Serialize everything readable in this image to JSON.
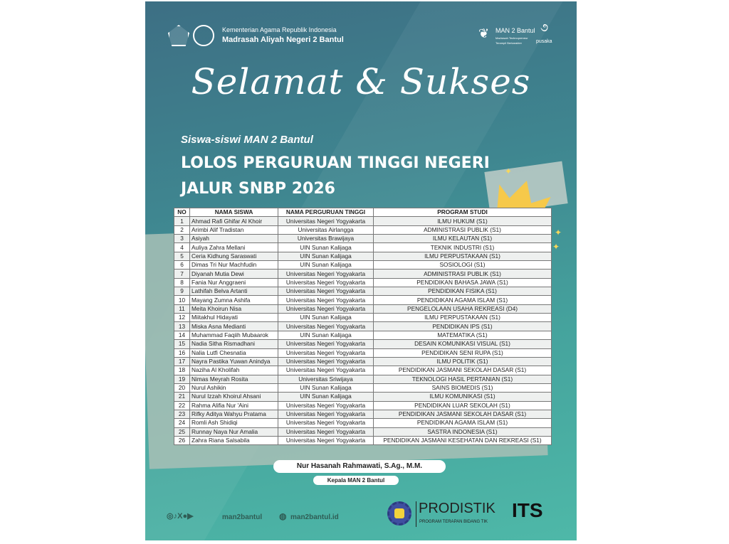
{
  "header": {
    "ministry": "Kementerian Agama Republik Indonesia",
    "school": "Madrasah Aliyah Negeri 2 Bantul",
    "brand": "MAN 2 Bantul",
    "brand_tag1": "Madrasah Technopreneur",
    "brand_tag2": "Terampil Berkarakter",
    "pusaka": "pusaka"
  },
  "title": "Selamat & Sukses",
  "subtitle": "Siswa-siswi MAN 2 Bantul",
  "headline1": "LOLOS PERGURUAN TINGGI NEGERI",
  "headline2": "JALUR SNBP 2026",
  "table": {
    "columns": [
      "NO",
      "NAMA SISWA",
      "NAMA PERGURUAN TINGGI",
      "PROGRAM STUDI"
    ],
    "rows": [
      [
        "1",
        "Ahmad Rafi Ghifar Al Khoir",
        "Universitas Negeri Yogyakarta",
        "ILMU HUKUM (S1)"
      ],
      [
        "2",
        "Arimbi Alif Tradistan",
        "Universitas Airlangga",
        "ADMINISTRASI PUBLIK (S1)"
      ],
      [
        "3",
        "Asiyah",
        "Universitas Brawijaya",
        "ILMU KELAUTAN (S1)"
      ],
      [
        "4",
        "Auliya Zahra Mellani",
        "UIN Sunan Kalijaga",
        "TEKNIK INDUSTRI (S1)"
      ],
      [
        "5",
        "Ceria Kidhung Saraswati",
        "UIN Sunan Kalijaga",
        "ILMU PERPUSTAKAAN (S1)"
      ],
      [
        "6",
        "Dimas Tri Nur Machfudin",
        "UIN Sunan Kalijaga",
        "SOSIOLOGI (S1)"
      ],
      [
        "7",
        "Diyanah Mutia Dewi",
        "Universitas Negeri Yogyakarta",
        "ADMINISTRASI PUBLIK (S1)"
      ],
      [
        "8",
        "Fania Nur Anggraeni",
        "Universitas Negeri Yogyakarta",
        "PENDIDIKAN BAHASA JAWA (S1)"
      ],
      [
        "9",
        "Lathifah Belva Artanti",
        "Universitas Negeri Yogyakarta",
        "PENDIDIKAN FISIKA (S1)"
      ],
      [
        "10",
        "Mayang Zumna Ashifa",
        "Universitas Negeri Yogyakarta",
        "PENDIDIKAN AGAMA ISLAM (S1)"
      ],
      [
        "11",
        "Meita Khoirun Nisa",
        "Universitas Negeri Yogyakarta",
        "PENGELOLAAN USAHA REKREASI (D4)"
      ],
      [
        "12",
        "Miitakhul Hidayati",
        "UIN Sunan Kalijaga",
        "ILMU PERPUSTAKAAN (S1)"
      ],
      [
        "13",
        "Miska Asna Medianti",
        "Universitas Negeri Yogyakarta",
        "PENDIDIKAN IPS (S1)"
      ],
      [
        "14",
        "Muhammad Faqiih Mubaarok",
        "UIN Sunan Kalijaga",
        "MATEMATIKA (S1)"
      ],
      [
        "15",
        "Nadia Sitha Rismadhani",
        "Universitas Negeri Yogyakarta",
        "DESAIN KOMUNIKASI VISUAL (S1)"
      ],
      [
        "16",
        "Nalia Lutfi Chesnatia",
        "Universitas Negeri Yogyakarta",
        "PENDIDIKAN SENI RUPA (S1)"
      ],
      [
        "17",
        "Nayra Pastika Yuwan Anindya",
        "Universitas Negeri Yogyakarta",
        "ILMU POLITIK (S1)"
      ],
      [
        "18",
        "Naziha Al Kholifah",
        "Universitas Negeri Yogyakarta",
        "PENDIDIKAN JASMANI SEKOLAH DASAR (S1)"
      ],
      [
        "19",
        "Nimas Meyrah Rosita",
        "Universitas Sriwijaya",
        "TEKNOLOGI HASIL PERTANIAN (S1)"
      ],
      [
        "20",
        "Nurul Ashikin",
        "UIN Sunan Kalijaga",
        "SAINS BIOMEDIS (S1)"
      ],
      [
        "21",
        "Nurul Izzah Khoirul Ahsani",
        "UIN Sunan Kalijaga",
        "ILMU KOMUNIKASI (S1)"
      ],
      [
        "22",
        "Rahma Alifia Nur 'Aini",
        "Universitas Negeri Yogyakarta",
        "PENDIDIKAN LUAR SEKOLAH (S1)"
      ],
      [
        "23",
        "Rifky Aditya Wahyu Pratama",
        "Universitas Negeri Yogyakarta",
        "PENDIDIKAN JASMANI SEKOLAH DASAR (S1)"
      ],
      [
        "24",
        "Romli Ash Shidiqi",
        "Universitas Negeri Yogyakarta",
        "PENDIDIKAN AGAMA ISLAM (S1)"
      ],
      [
        "25",
        "Runnay Naya Nur Amalia",
        "Universitas Negeri Yogyakarta",
        "SASTRA INDONESIA (S1)"
      ],
      [
        "26",
        "Zahra Riana Salsabila",
        "Universitas Negeri Yogyakarta",
        "PENDIDIKAN JASMANI KESEHATAN DAN REKREASI (S1)"
      ]
    ]
  },
  "signatory": {
    "name": "Nur Hasanah Rahmawati, S.Ag., M.M.",
    "role": "Kepala MAN 2 Bantul"
  },
  "footer": {
    "social_handle": "man2bantul",
    "website": "man2bantul.id",
    "social_icons": [
      "instagram-icon",
      "tiktok-icon",
      "x-icon",
      "facebook-icon",
      "youtube-icon"
    ],
    "prodistik": "PRODISTIK",
    "prodistik_sub": "PROGRAM TERAPAN BIDANG TIK",
    "its": "ITS"
  },
  "colors": {
    "teal_top": "#3d6f84",
    "teal_bottom": "#4eb8a8",
    "crown": "#f6c94a"
  }
}
